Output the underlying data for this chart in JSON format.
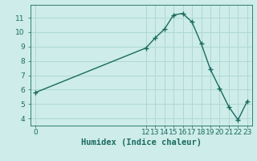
{
  "x": [
    0,
    12,
    13,
    14,
    15,
    16,
    17,
    18,
    19,
    20,
    21,
    22,
    23
  ],
  "y": [
    5.8,
    8.9,
    9.6,
    10.2,
    11.2,
    11.3,
    10.7,
    9.2,
    7.4,
    6.1,
    4.8,
    3.9,
    5.2
  ],
  "line_color": "#1a6b5e",
  "marker": "+",
  "marker_size": 4,
  "marker_lw": 1.0,
  "line_width": 1.0,
  "bg_color": "#cdecea",
  "grid_color": "#b0d8d4",
  "xlabel": "Humidex (Indice chaleur)",
  "xlabel_color": "#1a6b5e",
  "yticks": [
    4,
    5,
    6,
    7,
    8,
    9,
    10,
    11
  ],
  "ylim": [
    3.5,
    11.9
  ],
  "xlim": [
    -0.5,
    23.5
  ],
  "tick_color": "#1a6b5e",
  "axis_color": "#1a6b5e",
  "tick_fontsize": 6.5,
  "xlabel_fontsize": 7.5
}
